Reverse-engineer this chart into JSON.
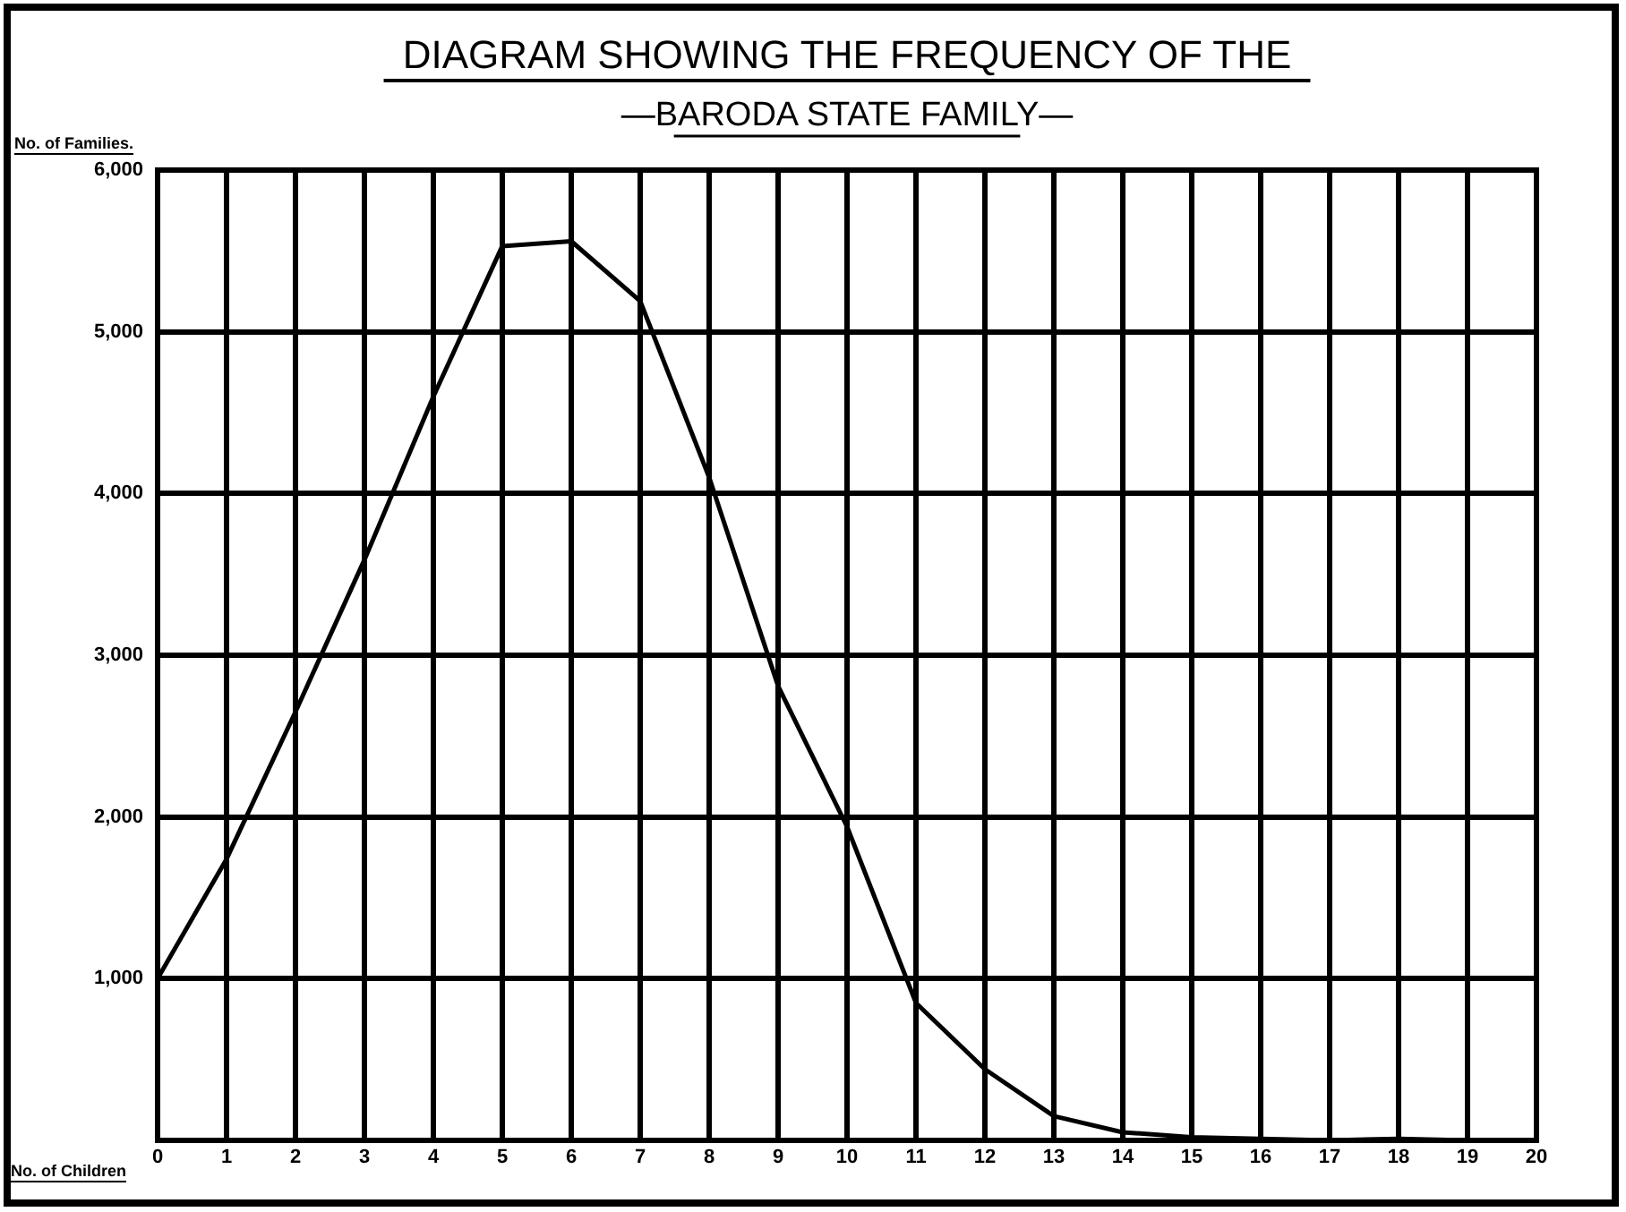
{
  "chart_data": {
    "type": "line",
    "title": "DIAGRAM SHOWING THE FREQUENCY OF THE",
    "subtitle": "—BARODA STATE FAMILY—",
    "xlabel": "No. of Children",
    "ylabel": "No. of Families.",
    "x": [
      0,
      1,
      2,
      3,
      4,
      5,
      6,
      7,
      8,
      9,
      10,
      11,
      12,
      13,
      14,
      15,
      16,
      17,
      18,
      19
    ],
    "series": [
      {
        "color": "#000000",
        "values": [
          1000,
          1740,
          2650,
          3590,
          4600,
          5530,
          5560,
          5190,
          4100,
          2810,
          1940,
          850,
          440,
          150,
          50,
          20,
          10,
          0,
          10,
          0
        ]
      }
    ],
    "xlim": [
      0,
      20
    ],
    "xticks": [
      0,
      1,
      2,
      3,
      4,
      5,
      6,
      7,
      8,
      9,
      10,
      11,
      12,
      13,
      14,
      15,
      16,
      17,
      18,
      19,
      20
    ],
    "ylim": [
      0,
      6000
    ],
    "yticks": [
      {
        "value": 1000,
        "label": "1,000"
      },
      {
        "value": 2000,
        "label": "2,000"
      },
      {
        "value": 3000,
        "label": "3,000"
      },
      {
        "value": 4000,
        "label": "4,000"
      },
      {
        "value": 5000,
        "label": "5,000"
      },
      {
        "value": 6000,
        "label": "6,000"
      }
    ],
    "grid": true,
    "legend": false,
    "marker": "none",
    "line_style": "solid"
  }
}
